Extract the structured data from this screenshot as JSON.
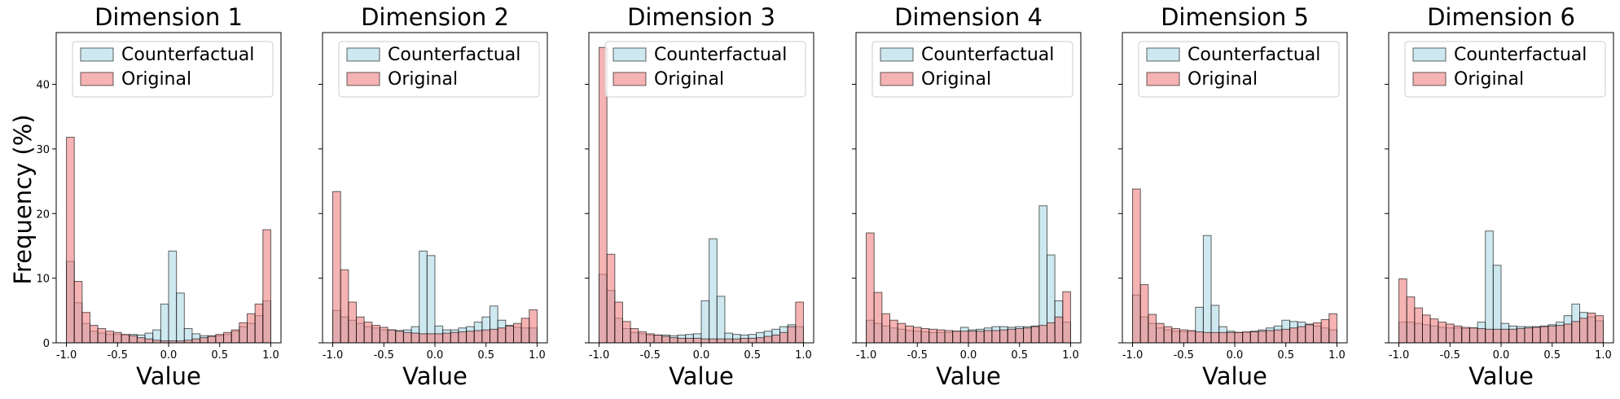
{
  "colors": {
    "counterfactual": "#add8e6",
    "original": "#f08080",
    "edge": "#000000"
  },
  "chart_data": [
    {
      "type": "bar",
      "title": "Dimension 1",
      "xlabel": "Value",
      "ylabel": "Frequency (%)",
      "xlim": [
        -1.1,
        1.1
      ],
      "ylim": [
        0,
        48
      ],
      "xticks": [
        "-1.0",
        "-0.5",
        "0.0",
        "0.5",
        "1.0"
      ],
      "yticks": [
        "0",
        "10",
        "20",
        "30",
        "40"
      ],
      "legend": [
        "Counterfactual",
        "Original"
      ],
      "series": [
        {
          "name": "Counterfactual",
          "values": [
            12.6,
            6.2,
            3.0,
            1.8,
            1.5,
            1.3,
            1.3,
            1.2,
            1.3,
            1.2,
            1.5,
            2.0,
            6.0,
            14.2,
            7.7,
            2.2,
            1.4,
            1.1,
            1.1,
            1.1,
            1.3,
            1.8,
            2.5,
            3.0,
            4.2,
            6.5
          ]
        },
        {
          "name": "Original",
          "values": [
            31.8,
            9.5,
            4.7,
            2.7,
            2.2,
            1.8,
            1.6,
            1.3,
            1.1,
            0.8,
            0.6,
            0.4,
            0.3,
            0.3,
            0.3,
            0.4,
            0.6,
            0.8,
            1.0,
            1.3,
            1.6,
            2.0,
            3.1,
            4.5,
            6.0,
            17.5
          ]
        }
      ]
    },
    {
      "type": "bar",
      "title": "Dimension 2",
      "xlabel": "Value",
      "ylabel": "",
      "xlim": [
        -1.1,
        1.1
      ],
      "ylim": [
        0,
        48
      ],
      "xticks": [
        "-1.0",
        "-0.5",
        "0.0",
        "0.5",
        "1.0"
      ],
      "yticks": [],
      "legend": [
        "Counterfactual",
        "Original"
      ],
      "series": [
        {
          "name": "Counterfactual",
          "values": [
            5.0,
            4.0,
            3.5,
            3.0,
            2.5,
            2.3,
            2.0,
            2.0,
            1.9,
            2.0,
            2.5,
            14.2,
            13.5,
            2.6,
            2.0,
            2.0,
            2.3,
            2.5,
            3.2,
            4.0,
            5.7,
            3.5,
            2.7,
            2.4,
            2.3,
            2.3
          ]
        },
        {
          "name": "Original",
          "values": [
            23.4,
            11.3,
            6.3,
            4.0,
            3.2,
            2.7,
            2.4,
            2.0,
            1.8,
            1.6,
            1.5,
            1.4,
            1.4,
            1.4,
            1.5,
            1.6,
            1.7,
            1.8,
            1.9,
            2.0,
            2.1,
            2.3,
            2.6,
            3.0,
            3.8,
            5.1
          ]
        }
      ]
    },
    {
      "type": "bar",
      "title": "Dimension 3",
      "xlabel": "Value",
      "ylabel": "",
      "xlim": [
        -1.1,
        1.1
      ],
      "ylim": [
        0,
        48
      ],
      "xticks": [
        "-1.0",
        "-0.5",
        "0.0",
        "0.5",
        "1.0"
      ],
      "yticks": [],
      "legend": [
        "Counterfactual",
        "Original"
      ],
      "series": [
        {
          "name": "Counterfactual",
          "values": [
            10.6,
            8.1,
            3.8,
            2.2,
            1.6,
            1.4,
            1.2,
            1.2,
            1.2,
            1.1,
            1.2,
            1.3,
            1.4,
            6.5,
            16.1,
            7.2,
            1.5,
            1.3,
            1.2,
            1.3,
            1.6,
            1.8,
            2.1,
            2.5,
            2.8,
            2.5
          ]
        },
        {
          "name": "Original",
          "values": [
            45.7,
            13.7,
            6.3,
            3.3,
            2.2,
            1.7,
            1.4,
            1.2,
            1.0,
            0.8,
            0.7,
            0.7,
            0.7,
            0.6,
            0.6,
            0.6,
            0.6,
            0.6,
            0.7,
            0.7,
            0.8,
            1.0,
            1.2,
            1.6,
            2.5,
            6.3
          ]
        }
      ]
    },
    {
      "type": "bar",
      "title": "Dimension 4",
      "xlabel": "Value",
      "ylabel": "",
      "xlim": [
        -1.1,
        1.1
      ],
      "ylim": [
        0,
        48
      ],
      "xticks": [
        "-1.0",
        "-0.5",
        "0.0",
        "0.5",
        "1.0"
      ],
      "yticks": [],
      "legend": [
        "Counterfactual",
        "Original"
      ],
      "series": [
        {
          "name": "Counterfactual",
          "values": [
            3.5,
            3.0,
            2.6,
            2.3,
            2.1,
            1.9,
            1.8,
            1.7,
            1.6,
            1.6,
            1.6,
            1.8,
            2.4,
            2.0,
            2.1,
            2.3,
            2.5,
            2.5,
            2.4,
            2.5,
            2.5,
            2.6,
            21.2,
            13.6,
            6.5,
            3.2
          ]
        },
        {
          "name": "Original",
          "values": [
            17.0,
            7.8,
            4.5,
            3.5,
            3.0,
            2.6,
            2.4,
            2.2,
            2.1,
            2.0,
            1.9,
            1.8,
            1.8,
            1.8,
            1.8,
            1.9,
            1.9,
            2.0,
            2.1,
            2.2,
            2.3,
            2.5,
            2.7,
            3.1,
            4.0,
            7.9
          ]
        }
      ]
    },
    {
      "type": "bar",
      "title": "Dimension 5",
      "xlabel": "Value",
      "ylabel": "",
      "xlim": [
        -1.1,
        1.1
      ],
      "ylim": [
        0,
        48
      ],
      "xticks": [
        "-1.0",
        "-0.5",
        "0.0",
        "0.5",
        "1.0"
      ],
      "yticks": [],
      "legend": [
        "Counterfactual",
        "Original"
      ],
      "series": [
        {
          "name": "Counterfactual",
          "values": [
            7.4,
            4.0,
            3.0,
            2.3,
            2.0,
            1.8,
            1.7,
            1.8,
            5.5,
            16.6,
            5.8,
            2.5,
            1.8,
            1.6,
            1.6,
            1.8,
            2.0,
            2.3,
            2.6,
            3.5,
            3.3,
            3.2,
            2.9,
            2.6,
            2.3,
            2.0
          ]
        },
        {
          "name": "Original",
          "values": [
            23.8,
            9.0,
            4.4,
            3.0,
            2.5,
            2.2,
            2.0,
            1.9,
            1.7,
            1.6,
            1.6,
            1.6,
            1.6,
            1.6,
            1.7,
            1.7,
            1.8,
            1.9,
            2.0,
            2.1,
            2.3,
            2.5,
            2.8,
            3.1,
            3.6,
            4.5
          ]
        }
      ]
    },
    {
      "type": "bar",
      "title": "Dimension 6",
      "xlabel": "Value",
      "ylabel": "",
      "xlim": [
        -1.1,
        1.1
      ],
      "ylim": [
        0,
        48
      ],
      "xticks": [
        "-1.0",
        "-0.5",
        "0.0",
        "0.5",
        "1.0"
      ],
      "yticks": [],
      "legend": [
        "Counterfactual",
        "Original"
      ],
      "series": [
        {
          "name": "Counterfactual",
          "values": [
            3.2,
            3.2,
            3.0,
            2.8,
            2.6,
            2.4,
            2.3,
            2.3,
            2.2,
            2.3,
            3.2,
            17.3,
            12.0,
            3.0,
            2.6,
            2.5,
            2.5,
            2.5,
            2.6,
            2.8,
            3.2,
            4.2,
            6.0,
            4.7,
            4.0,
            3.4
          ]
        },
        {
          "name": "Original",
          "values": [
            9.9,
            7.1,
            5.4,
            4.3,
            3.7,
            3.2,
            2.9,
            2.6,
            2.4,
            2.3,
            2.2,
            2.1,
            2.1,
            2.1,
            2.1,
            2.2,
            2.3,
            2.4,
            2.5,
            2.6,
            2.7,
            2.9,
            3.3,
            3.8,
            4.6,
            4.2
          ]
        }
      ]
    }
  ]
}
